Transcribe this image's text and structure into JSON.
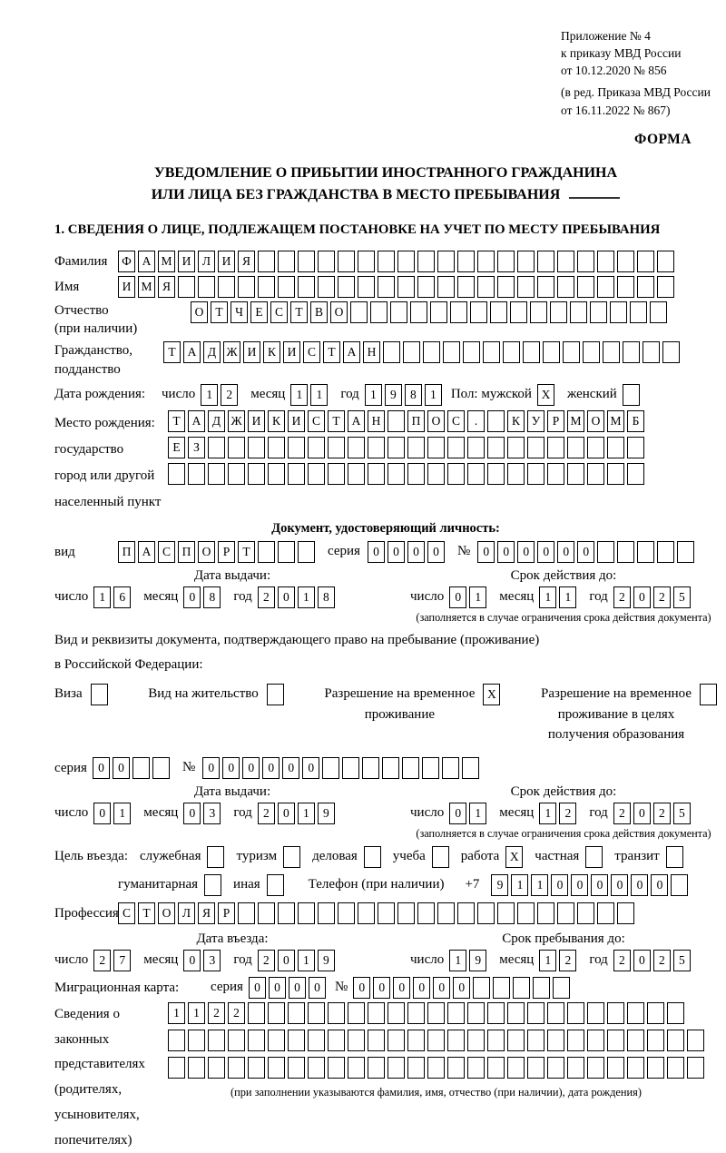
{
  "header": {
    "annex_lines": [
      "Приложение № 4",
      "к приказу МВД России",
      "от 10.12.2020 № 856"
    ],
    "amendment_lines": [
      "(в ред. Приказа МВД России",
      "от 16.11.2022 № 867)"
    ],
    "forma": "ФОРМА"
  },
  "title": {
    "line1": "УВЕДОМЛЕНИЕ О ПРИБЫТИИ ИНОСТРАННОГО ГРАЖДАНИНА",
    "line2": "ИЛИ ЛИЦА БЕЗ ГРАЖДАНСТВА В МЕСТО ПРЕБЫВАНИЯ"
  },
  "section1_heading": "1. СВЕДЕНИЯ О ЛИЦЕ, ПОДЛЕЖАЩЕМ ПОСТАНОВКЕ НА УЧЕТ ПО МЕСТУ ПРЕБЫВАНИЯ",
  "surname": {
    "label": "Фамилия",
    "cells": {
      "v": "ФАМИЛИЯ",
      "n": 28
    }
  },
  "firstname": {
    "label": "Имя",
    "cells": {
      "v": "ИМЯ",
      "n": 28
    }
  },
  "patronymic": {
    "label": "Отчество",
    "label2": "(при наличии)",
    "cells": {
      "v": "ОТЧЕСТВО",
      "n": 24
    }
  },
  "citizenship": {
    "label": "Гражданство,",
    "label2": "подданство",
    "cells": {
      "v": "ТАДЖИКИСТАН",
      "n": 26
    }
  },
  "birth_date": {
    "label": "Дата рождения:",
    "day_label": "число",
    "day": {
      "v": "12",
      "n": 2
    },
    "month_label": "месяц",
    "month": {
      "v": "11",
      "n": 2
    },
    "year_label": "год",
    "year": {
      "v": "1981",
      "n": 4
    },
    "sex_label": "Пол: мужской",
    "male": {
      "v": "X",
      "n": 1
    },
    "female_label": "женский",
    "female": {
      "v": "",
      "n": 1
    }
  },
  "birth_place": {
    "label_lines": [
      "Место рождения:",
      "государство",
      "город или другой",
      "населенный пункт"
    ],
    "row1": {
      "v": "ТАДЖИКИСТАН ПОС. КУРМОМБ",
      "n": 24
    },
    "row2": {
      "v": "ЕЗ",
      "n": 24
    },
    "row3": {
      "v": "",
      "n": 24
    }
  },
  "identity_doc": {
    "heading": "Документ, удостоверяющий личность:",
    "kind_label": "вид",
    "kind": {
      "v": "ПАСПОРТ",
      "n": 10
    },
    "series_label": "серия",
    "series": {
      "v": "0000",
      "n": 4
    },
    "number_label": "№",
    "number": {
      "v": "000000",
      "n": 11
    },
    "issue": {
      "heading": "Дата выдачи:",
      "day_label": "число",
      "day": {
        "v": "16",
        "n": 2
      },
      "month_label": "месяц",
      "month": {
        "v": "08",
        "n": 2
      },
      "year_label": "год",
      "year": {
        "v": "2018",
        "n": 4
      }
    },
    "expiry": {
      "heading": "Срок действия до:",
      "day_label": "число",
      "day": {
        "v": "01",
        "n": 2
      },
      "month_label": "месяц",
      "month": {
        "v": "11",
        "n": 2
      },
      "year_label": "год",
      "year": {
        "v": "2025",
        "n": 4
      }
    },
    "expiry_note": "(заполняется в случае ограничения срока действия документа)"
  },
  "residence_doc": {
    "intro_line1": "Вид и реквизиты документа, подтверждающего право на пребывание (проживание)",
    "intro_line2": "в Российской Федерации:",
    "opt_visa": {
      "label": "Виза",
      "box": {
        "v": "",
        "n": 1
      }
    },
    "opt_residence_permit": {
      "label": "Вид на жительство",
      "box": {
        "v": "",
        "n": 1
      }
    },
    "opt_temp_residence": {
      "line1": "Разрешение на временное",
      "line2": "проживание",
      "box": {
        "v": "X",
        "n": 1
      }
    },
    "opt_temp_residence_edu": {
      "line1": "Разрешение на временное",
      "line2": "проживание в целях",
      "line3": "получения образования",
      "box": {
        "v": "",
        "n": 1
      }
    },
    "series_label": "серия",
    "series": {
      "v": "00",
      "n": 4
    },
    "number_label": "№",
    "number": {
      "v": "000000",
      "n": 14
    },
    "issue": {
      "heading": "Дата выдачи:",
      "day_label": "число",
      "day": {
        "v": "01",
        "n": 2
      },
      "month_label": "месяц",
      "month": {
        "v": "03",
        "n": 2
      },
      "year_label": "год",
      "year": {
        "v": "2019",
        "n": 4
      }
    },
    "expiry": {
      "heading": "Срок действия до:",
      "day_label": "число",
      "day": {
        "v": "01",
        "n": 2
      },
      "month_label": "месяц",
      "month": {
        "v": "12",
        "n": 2
      },
      "year_label": "год",
      "year": {
        "v": "2025",
        "n": 4
      }
    },
    "expiry_note": "(заполняется в случае ограничения срока действия документа)"
  },
  "visit_purpose": {
    "label": "Цель въезда:",
    "row1": [
      {
        "label": "служебная",
        "box": {
          "v": "",
          "n": 1
        }
      },
      {
        "label": "туризм",
        "box": {
          "v": "",
          "n": 1
        }
      },
      {
        "label": "деловая",
        "box": {
          "v": "",
          "n": 1
        }
      },
      {
        "label": "учеба",
        "box": {
          "v": "",
          "n": 1
        }
      },
      {
        "label": "работа",
        "box": {
          "v": "X",
          "n": 1
        }
      },
      {
        "label": "частная",
        "box": {
          "v": "",
          "n": 1
        }
      },
      {
        "label": "транзит",
        "box": {
          "v": "",
          "n": 1
        }
      }
    ],
    "row2": [
      {
        "label": "гуманитарная",
        "box": {
          "v": "",
          "n": 1
        }
      },
      {
        "label": "иная",
        "box": {
          "v": "",
          "n": 1
        }
      }
    ],
    "phone_label": "Телефон (при наличии)",
    "phone_prefix": "+7",
    "phone": {
      "v": "911000000",
      "n": 10
    }
  },
  "profession": {
    "label": "Профессия",
    "cells": {
      "v": "СТОЛЯР",
      "n": 26
    }
  },
  "entry": {
    "date": {
      "heading": "Дата въезда:",
      "day_label": "число",
      "day": {
        "v": "27",
        "n": 2
      },
      "month_label": "месяц",
      "month": {
        "v": "03",
        "n": 2
      },
      "year_label": "год",
      "year": {
        "v": "2019",
        "n": 4
      }
    },
    "stay": {
      "heading": "Срок пребывания до:",
      "day_label": "число",
      "day": {
        "v": "19",
        "n": 2
      },
      "month_label": "месяц",
      "month": {
        "v": "12",
        "n": 2
      },
      "year_label": "год",
      "year": {
        "v": "2025",
        "n": 4
      }
    }
  },
  "migration_card": {
    "label": "Миграционная карта:",
    "series_label": "серия",
    "series": {
      "v": "0000",
      "n": 4
    },
    "number_label": "№",
    "number": {
      "v": "000000",
      "n": 11
    }
  },
  "guardians": {
    "label_lines": [
      "Сведения о",
      "законных",
      "представителях",
      "(родителях,",
      "усыновителях,",
      "попечителях)"
    ],
    "row1": {
      "v": "1122",
      "n": 26
    },
    "row2": {
      "v": "",
      "n": 27
    },
    "row3": {
      "v": "",
      "n": 27
    },
    "note": "(при заполнении указываются фамилия, имя, отчество (при наличии), дата рождения)"
  }
}
